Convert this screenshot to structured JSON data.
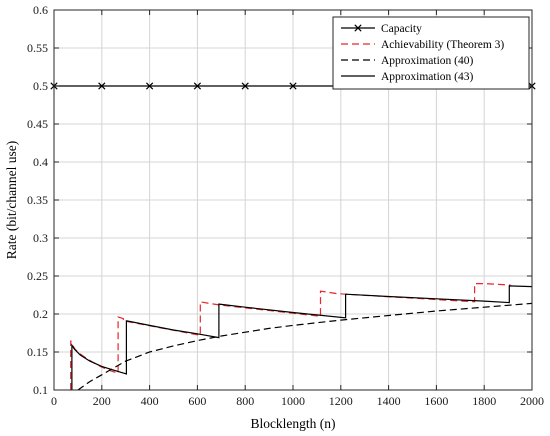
{
  "chart_data": {
    "type": "line",
    "xlabel": "Blocklength (n)",
    "ylabel": "Rate (bit/channel use)",
    "xlim": [
      0,
      2000
    ],
    "ylim": [
      0.1,
      0.6
    ],
    "xticks": [
      0,
      200,
      400,
      600,
      800,
      1000,
      1200,
      1400,
      1600,
      1800,
      2000
    ],
    "yticks": [
      0.1,
      0.15,
      0.2,
      0.25,
      0.3,
      0.35,
      0.4,
      0.45,
      0.5,
      0.55,
      0.6
    ],
    "grid": true,
    "legend_position": "top-right",
    "series": [
      {
        "name": "Capacity",
        "color": "#000000",
        "style": "solid-x-markers",
        "x": [
          0,
          200,
          400,
          600,
          800,
          1000,
          1200,
          1400,
          1600,
          1800,
          2000
        ],
        "y": [
          0.5,
          0.5,
          0.5,
          0.5,
          0.5,
          0.5,
          0.5,
          0.5,
          0.5,
          0.5,
          0.5
        ]
      },
      {
        "name": "Achievability (Theorem 3)",
        "color": "#e8262b",
        "style": "dashed",
        "x": [
          70,
          70,
          75,
          90,
          120,
          160,
          200,
          240,
          268,
          268,
          290,
          290,
          612,
          612,
          650,
          690,
          690,
          1115,
          1115,
          1140,
          1180,
          1220,
          1220,
          1760,
          1760,
          1800,
          1860,
          1910,
          1910
        ],
        "y": [
          0.1,
          0.165,
          0.16,
          0.153,
          0.145,
          0.137,
          0.13,
          0.125,
          0.122,
          0.196,
          0.194,
          0.191,
          0.172,
          0.216,
          0.214,
          0.212,
          0.212,
          0.197,
          0.23,
          0.229,
          0.227,
          0.226,
          0.226,
          0.216,
          0.24,
          0.24,
          0.239,
          0.238,
          0.238
        ]
      },
      {
        "name": "Approximation (40)",
        "color": "#000000",
        "style": "dashed",
        "x": [
          100,
          150,
          200,
          300,
          400,
          500,
          600,
          700,
          800,
          900,
          1000,
          1200,
          1400,
          1600,
          1800,
          2000
        ],
        "y": [
          0.1,
          0.111,
          0.12,
          0.138,
          0.15,
          0.158,
          0.165,
          0.171,
          0.176,
          0.181,
          0.185,
          0.192,
          0.198,
          0.204,
          0.209,
          0.214
        ]
      },
      {
        "name": "Approximation (43)",
        "color": "#000000",
        "style": "solid",
        "x": [
          75,
          75,
          85,
          110,
          150,
          200,
          250,
          303,
          303,
          400,
          500,
          600,
          690,
          690,
          800,
          1000,
          1220,
          1220,
          1400,
          1600,
          1800,
          1905,
          1905,
          2000
        ],
        "y": [
          0.1,
          0.159,
          0.154,
          0.146,
          0.138,
          0.131,
          0.126,
          0.121,
          0.191,
          0.185,
          0.179,
          0.174,
          0.169,
          0.213,
          0.209,
          0.202,
          0.195,
          0.226,
          0.223,
          0.22,
          0.217,
          0.215,
          0.237,
          0.236
        ]
      }
    ]
  }
}
